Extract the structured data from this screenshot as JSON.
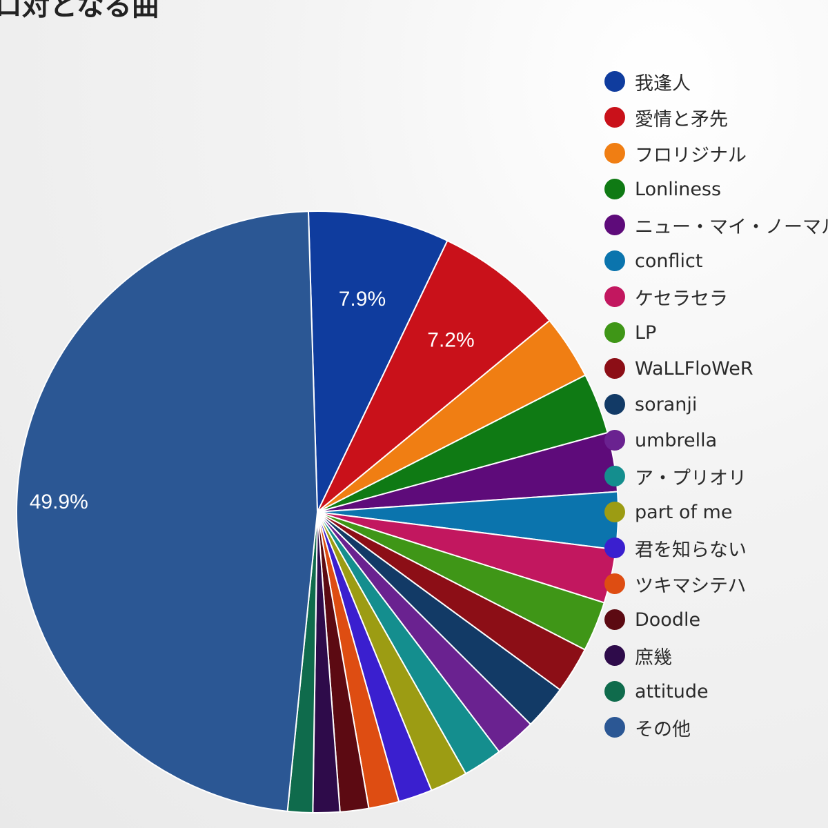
{
  "page": {
    "title_fragment": "ロ対となる曲"
  },
  "chart_data": {
    "type": "pie",
    "title": "ロ対となる曲",
    "legend_position": "right",
    "slices": [
      {
        "name": "我逢人",
        "value": 7.9,
        "label": "7.9%",
        "color": "#0f3c9e"
      },
      {
        "name": "愛情と矛先",
        "value": 7.2,
        "label": "7.2%",
        "color": "#c9111a"
      },
      {
        "name": "フロリジナル",
        "value": 3.6,
        "color": "#f07e13"
      },
      {
        "name": "Lonliness",
        "value": 3.4,
        "color": "#0f7a14"
      },
      {
        "name": "ニュー・マイ・ノーマル",
        "value": 3.3,
        "color": "#5e0b7a"
      },
      {
        "name": "conflict",
        "value": 3.2,
        "color": "#0b74ad"
      },
      {
        "name": "ケセラセラ",
        "value": 3.0,
        "color": "#c2175f"
      },
      {
        "name": "LP",
        "value": 2.8,
        "color": "#3f9617"
      },
      {
        "name": "WaLLFloWeR",
        "value": 2.6,
        "color": "#8c0e16"
      },
      {
        "name": "soranji",
        "value": 2.5,
        "color": "#123a66"
      },
      {
        "name": "umbrella",
        "value": 2.3,
        "color": "#6a2290"
      },
      {
        "name": "ア・プリオリ",
        "value": 2.2,
        "color": "#148e8e"
      },
      {
        "name": "part of me",
        "value": 2.1,
        "color": "#9c9c13"
      },
      {
        "name": "君を知らない",
        "value": 1.9,
        "color": "#3a1fcf"
      },
      {
        "name": "ツキマシテハ",
        "value": 1.7,
        "color": "#de4d12"
      },
      {
        "name": "Doodle",
        "value": 1.6,
        "color": "#5c0a12"
      },
      {
        "name": "庶幾",
        "value": 1.5,
        "color": "#2e0b4a"
      },
      {
        "name": "attitude",
        "value": 1.4,
        "color": "#0f6b4c"
      },
      {
        "name": "その他",
        "value": 49.9,
        "label": "49.9%",
        "color": "#2b5794"
      }
    ]
  }
}
